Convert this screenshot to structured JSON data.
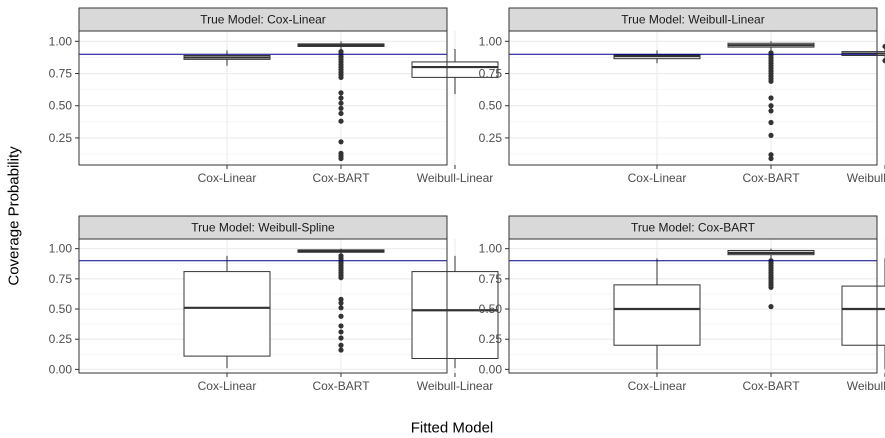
{
  "figure": {
    "ylabel": "Coverage Probability",
    "xlabel": "Fitted Model",
    "reference_line": 0.9,
    "reference_color": "#00008B",
    "strip_fill": "#D9D9D9"
  },
  "chart_data": [
    {
      "type": "boxplot",
      "title": "True Model: Cox-Linear",
      "categories": [
        "Cox-Linear",
        "Cox-BART",
        "Weibull-Linear"
      ],
      "ylim": [
        0.04,
        1.08
      ],
      "yticks": [
        0.25,
        0.5,
        0.75,
        1.0
      ],
      "ytick_labels": [
        "0.25",
        "0.50",
        "0.75",
        "1.00"
      ],
      "boxes": [
        {
          "q1": 0.86,
          "median": 0.875,
          "q3": 0.89,
          "whisker_low": 0.81,
          "whisker_high": 0.93,
          "outliers": []
        },
        {
          "q1": 0.96,
          "median": 0.97,
          "q3": 0.98,
          "whisker_low": 0.93,
          "whisker_high": 1.0,
          "outliers": [
            0.92,
            0.9,
            0.88,
            0.86,
            0.84,
            0.82,
            0.8,
            0.78,
            0.76,
            0.74,
            0.72,
            0.6,
            0.56,
            0.52,
            0.48,
            0.44,
            0.38,
            0.22,
            0.13,
            0.11,
            0.09
          ]
        },
        {
          "q1": 0.72,
          "median": 0.8,
          "q3": 0.84,
          "whisker_low": 0.59,
          "whisker_high": 0.94,
          "outliers": []
        }
      ]
    },
    {
      "type": "boxplot",
      "title": "True Model: Weibull-Linear",
      "categories": [
        "Cox-Linear",
        "Cox-BART",
        "Weibull-Linear"
      ],
      "ylim": [
        0.04,
        1.08
      ],
      "yticks": [
        0.25,
        0.5,
        0.75,
        1.0
      ],
      "ytick_labels": [
        "0.25",
        "0.50",
        "0.75",
        "1.00"
      ],
      "boxes": [
        {
          "q1": 0.865,
          "median": 0.885,
          "q3": 0.895,
          "whisker_low": 0.83,
          "whisker_high": 0.93,
          "outliers": []
        },
        {
          "q1": 0.955,
          "median": 0.97,
          "q3": 0.985,
          "whisker_low": 0.93,
          "whisker_high": 1.0,
          "outliers": [
            0.91,
            0.89,
            0.87,
            0.85,
            0.83,
            0.81,
            0.79,
            0.77,
            0.75,
            0.73,
            0.71,
            0.69,
            0.56,
            0.5,
            0.46,
            0.37,
            0.27,
            0.12,
            0.09
          ]
        },
        {
          "q1": 0.89,
          "median": 0.905,
          "q3": 0.92,
          "whisker_low": 0.87,
          "whisker_high": 0.94,
          "outliers": [
            0.96,
            0.85
          ]
        }
      ]
    },
    {
      "type": "boxplot",
      "title": "True Model: Weibull-Spline",
      "categories": [
        "Cox-Linear",
        "Cox-BART",
        "Weibull-Linear"
      ],
      "ylim": [
        -0.03,
        1.08
      ],
      "yticks": [
        0.0,
        0.25,
        0.5,
        0.75,
        1.0
      ],
      "ytick_labels": [
        "0.00",
        "0.25",
        "0.50",
        "0.75",
        "1.00"
      ],
      "boxes": [
        {
          "q1": 0.11,
          "median": 0.51,
          "q3": 0.81,
          "whisker_low": 0.01,
          "whisker_high": 0.94,
          "outliers": []
        },
        {
          "q1": 0.97,
          "median": 0.98,
          "q3": 0.99,
          "whisker_low": 0.95,
          "whisker_high": 1.0,
          "outliers": [
            0.94,
            0.92,
            0.9,
            0.88,
            0.86,
            0.84,
            0.82,
            0.8,
            0.78,
            0.76,
            0.58,
            0.55,
            0.51,
            0.44,
            0.36,
            0.31,
            0.26,
            0.2,
            0.16
          ]
        },
        {
          "q1": 0.09,
          "median": 0.49,
          "q3": 0.81,
          "whisker_low": 0.01,
          "whisker_high": 0.94,
          "outliers": []
        }
      ]
    },
    {
      "type": "boxplot",
      "title": "True Model: Cox-BART",
      "categories": [
        "Cox-Linear",
        "Cox-BART",
        "Weibull-Linear"
      ],
      "ylim": [
        -0.03,
        1.08
      ],
      "yticks": [
        0.0,
        0.25,
        0.5,
        0.75,
        1.0
      ],
      "ytick_labels": [
        "0.00",
        "0.25",
        "0.50",
        "0.75",
        "1.00"
      ],
      "boxes": [
        {
          "q1": 0.2,
          "median": 0.5,
          "q3": 0.7,
          "whisker_low": 0.0,
          "whisker_high": 0.92,
          "outliers": []
        },
        {
          "q1": 0.95,
          "median": 0.965,
          "q3": 0.985,
          "whisker_low": 0.92,
          "whisker_high": 1.0,
          "outliers": [
            0.9,
            0.88,
            0.86,
            0.84,
            0.82,
            0.8,
            0.78,
            0.76,
            0.74,
            0.72,
            0.7,
            0.68,
            0.52
          ]
        },
        {
          "q1": 0.2,
          "median": 0.5,
          "q3": 0.69,
          "whisker_low": 0.0,
          "whisker_high": 0.92,
          "outliers": []
        }
      ]
    }
  ]
}
